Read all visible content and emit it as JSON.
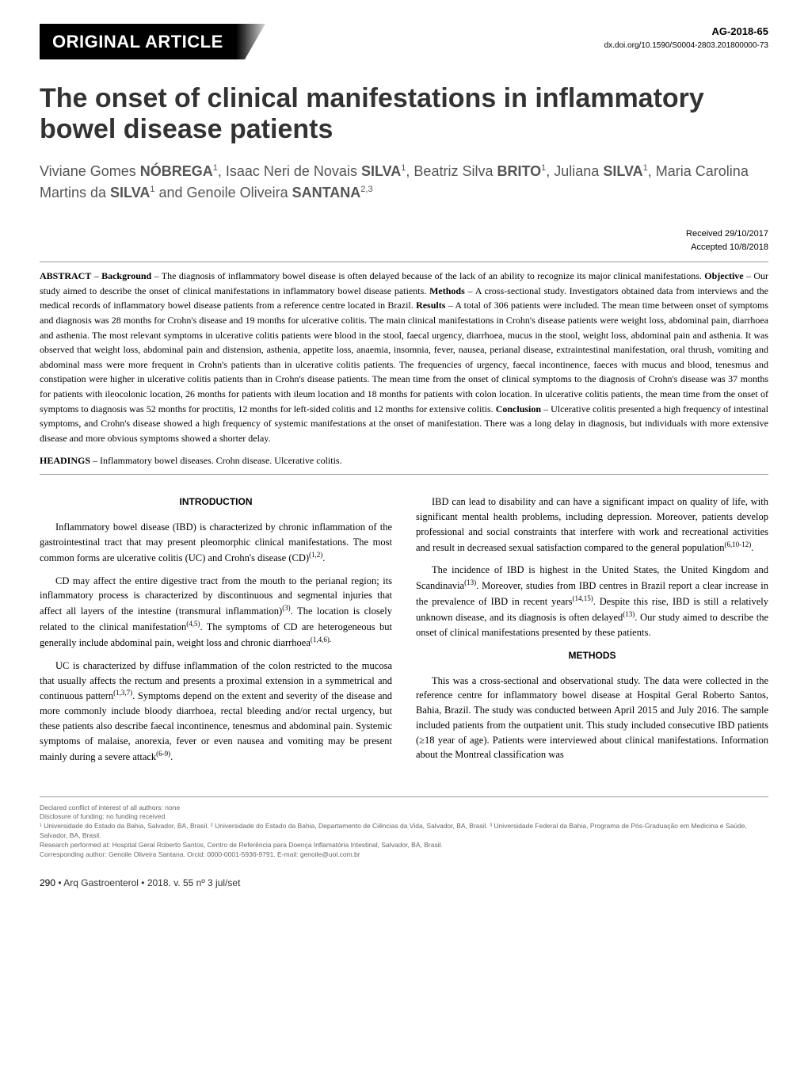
{
  "header": {
    "section_label": "ORIGINAL ARTICLE",
    "ag_id": "AG-2018-65",
    "doi": "dx.doi.org/10.1590/S0004-2803.201800000-73"
  },
  "title": "The onset of clinical manifestations in inflammatory bowel disease patients",
  "authors_html": "Viviane Gomes <span class='surname'>NÓBREGA</span><sup>1</sup>, Isaac Neri de Novais <span class='surname'>SILVA</span><sup>1</sup>, Beatriz Silva <span class='surname'>BRITO</span><sup>1</sup>, Juliana <span class='surname'>SILVA</span><sup>1</sup>, Maria Carolina Martins da <span class='surname'>SILVA</span><sup>1</sup> and Genoile Oliveira <span class='surname'>SANTANA</span><sup>2,3</sup>",
  "dates": {
    "received": "Received 29/10/2017",
    "accepted": "Accepted 10/8/2018"
  },
  "abstract": {
    "label": "ABSTRACT",
    "background_label": "Background",
    "background": "The diagnosis of inflammatory bowel disease is often delayed because of the lack of an ability to recognize its major clinical manifestations.",
    "objective_label": "Objective",
    "objective": "Our study aimed to describe the onset of clinical manifestations in inflammatory bowel disease patients.",
    "methods_label": "Methods",
    "methods": "A cross-sectional study. Investigators obtained data from interviews and the medical records of inflammatory bowel disease patients from a reference centre located in Brazil.",
    "results_label": "Results",
    "results": "A total of 306 patients were included. The mean time between onset of symptoms and diagnosis was 28 months for Crohn's disease and 19 months for ulcerative colitis. The main clinical manifestations in Crohn's disease patients were weight loss, abdominal pain, diarrhoea and asthenia. The most relevant symptoms in ulcerative colitis patients were blood in the stool, faecal urgency, diarrhoea, mucus in the stool, weight loss, abdominal pain and asthenia. It was observed that weight loss, abdominal pain and distension, asthenia, appetite loss, anaemia, insomnia, fever, nausea, perianal disease, extraintestinal manifestation, oral thrush, vomiting and abdominal mass were more frequent in Crohn's patients than in ulcerative colitis patients. The frequencies of urgency, faecal incontinence, faeces with mucus and blood, tenesmus and constipation were higher in ulcerative colitis patients than in Crohn's disease patients. The mean time from the onset of clinical symptoms to the diagnosis of Crohn's disease was 37 months for patients with ileocolonic location, 26 months for patients with ileum location and 18 months for patients with colon location. In ulcerative colitis patients, the mean time from the onset of symptoms to diagnosis was 52 months for proctitis, 12 months for left-sided colitis and 12 months for extensive colitis.",
    "conclusion_label": "Conclusion",
    "conclusion": "Ulcerative colitis presented a high frequency of intestinal symptoms, and Crohn's disease showed a high frequency of systemic manifestations at the onset of manifestation. There was a long delay in diagnosis, but individuals with more extensive disease and more obvious symptoms showed a shorter delay."
  },
  "headings": {
    "label": "HEADINGS",
    "text": "Inflammatory bowel diseases. Crohn disease. Ulcerative colitis."
  },
  "intro": {
    "heading": "INTRODUCTION",
    "p1": "Inflammatory bowel disease (IBD) is characterized by chronic inflammation of the gastrointestinal tract that may present pleomorphic clinical manifestations. The most common forms are ulcerative colitis (UC) and Crohn's disease (CD)",
    "p1_ref": "(1,2)",
    "p2": "CD may affect the entire digestive tract from the mouth to the perianal region; its inflammatory process is characterized by discontinuous and segmental injuries that affect all layers of the intestine (transmural inflammation)",
    "p2_ref1": "(3)",
    "p2_cont": ". The location is closely related to the clinical manifestation",
    "p2_ref2": "(4,5)",
    "p2_cont2": ". The symptoms of CD are heterogeneous but generally include abdominal pain, weight loss and chronic diarrhoea",
    "p2_ref3": "(1,4,6).",
    "p3": "UC is characterized by diffuse inflammation of the colon restricted to the mucosa that usually affects the rectum and presents a proximal extension in a symmetrical and continuous pattern",
    "p3_ref1": "(1,3,7)",
    "p3_cont": ". Symptoms depend on the extent and severity of the disease and more commonly include bloody diarrhoea, rectal bleeding and/or rectal urgency, but these patients also describe faecal incontinence, tenesmus and abdominal pain. Systemic symptoms of malaise, anorexia, fever or even nausea and vomiting may be present mainly during a severe attack",
    "p3_ref2": "(6-9)",
    "p4": "IBD can lead to disability and can have a significant impact on quality of life, with significant mental health problems, including depression. Moreover, patients develop professional and social constraints that interfere with work and recreational activities and result in decreased sexual satisfaction compared to the general population",
    "p4_ref": "(6,10-12)",
    "p5": "The incidence of IBD is highest in the United States, the United Kingdom and Scandinavia",
    "p5_ref1": "(13)",
    "p5_cont": ". Moreover, studies from IBD centres in Brazil report a clear increase in the prevalence of IBD in recent years",
    "p5_ref2": "(14,15)",
    "p5_cont2": ". Despite this rise, IBD is still a relatively unknown disease, and its diagnosis is often delayed",
    "p5_ref3": "(13)",
    "p5_cont3": ". Our study aimed to describe the onset of clinical manifestations presented by these patients."
  },
  "methods": {
    "heading": "METHODS",
    "p1": "This was a cross-sectional and observational study. The data were collected in the reference centre for inflammatory bowel disease at Hospital Geral Roberto Santos, Bahia, Brazil. The study was conducted between April 2015 and July 2016. The sample included patients from the outpatient unit. This study included consecutive IBD patients (≥18 year of age). Patients were interviewed about clinical manifestations. Information about the Montreal classification was"
  },
  "footer": {
    "l1": "Declared conflict of interest of all authors: none",
    "l2": "Disclosure of funding: no funding received",
    "l3": "¹ Universidade do Estado da Bahia, Salvador, BA, Brasil. ² Universidade do Estado da Bahia, Departamento de Ciências da Vida, Salvador, BA, Brasil. ³ Universidade Federal da Bahia, Programa de Pós-Graduação em Medicina e Saúde, Salvador, BA, Brasil.",
    "l4": "Research performed at: Hospital Geral Roberto Santos, Centro de Referência para Doença Inflamatória Intestinal, Salvador, BA, Brasil.",
    "l5": "Corresponding author: Genoile Oliveira Santana. Orcid: 0000-0001-5936-9791. E-mail: genoile@uol.com.br"
  },
  "page_footer": {
    "page": "290",
    "bullet": "•",
    "journal": "Arq Gastroenterol • 2018. v. 55 nº 3 jul/set"
  }
}
